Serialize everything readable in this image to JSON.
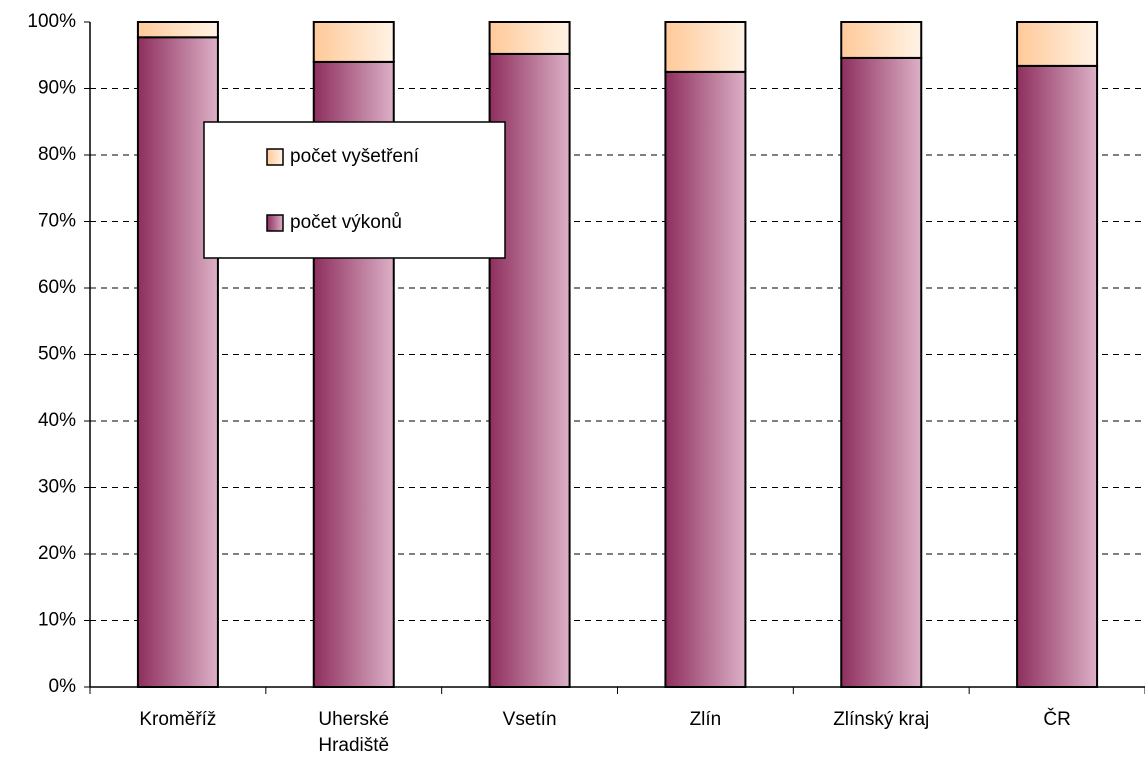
{
  "chart_data": {
    "type": "stacked_bar_percent",
    "categories": [
      "Kroměříž",
      "Uherské\nHradiště",
      "Vsetín",
      "Zlín",
      "Zlínský kraj",
      "ČR"
    ],
    "series": [
      {
        "name": "počet výkonů",
        "color": [
          "#8e2f5e",
          "#dcb0c6"
        ],
        "values": [
          97.7,
          94.0,
          95.2,
          92.5,
          94.6,
          93.4
        ]
      },
      {
        "name": "počet vyšetření",
        "color": [
          "#ffc999",
          "#fff3e6"
        ],
        "values": [
          2.3,
          6.0,
          4.8,
          7.5,
          5.4,
          6.6
        ]
      }
    ],
    "ylim": [
      0,
      100
    ],
    "yticks": [
      {
        "value": 0,
        "label": "0%"
      },
      {
        "value": 10,
        "label": "10%"
      },
      {
        "value": 20,
        "label": "20%"
      },
      {
        "value": 30,
        "label": "30%"
      },
      {
        "value": 40,
        "label": "40%"
      },
      {
        "value": 50,
        "label": "50%"
      },
      {
        "value": 60,
        "label": "60%"
      },
      {
        "value": 70,
        "label": "70%"
      },
      {
        "value": 80,
        "label": "80%"
      },
      {
        "value": 90,
        "label": "90%"
      },
      {
        "value": 100,
        "label": "100%"
      }
    ],
    "grid": true,
    "legend": "upper left"
  }
}
